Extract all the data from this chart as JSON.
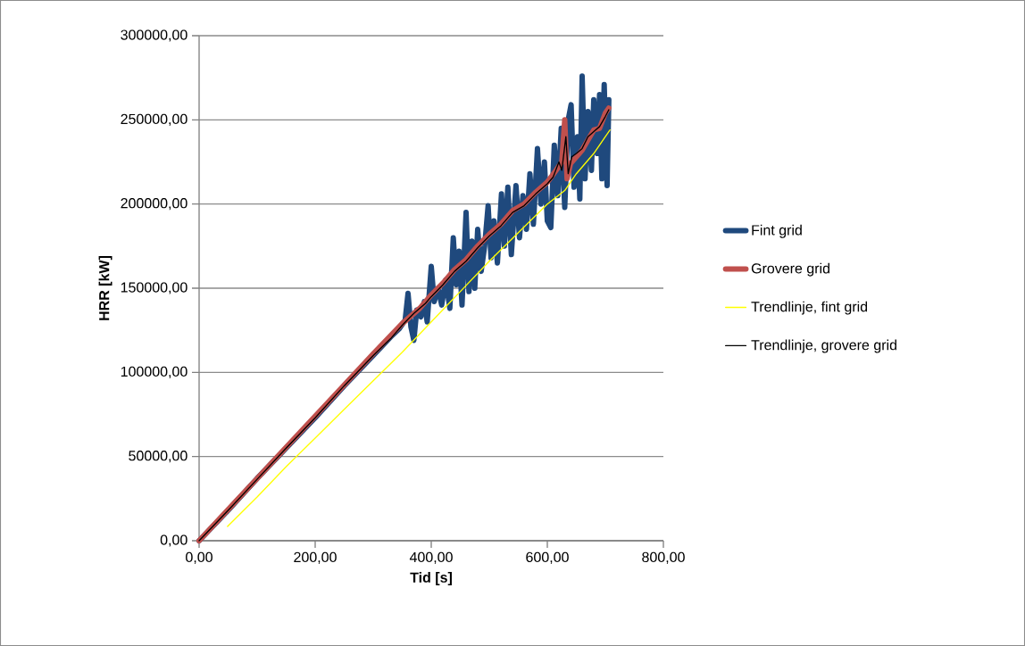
{
  "chart_data": {
    "type": "line",
    "xlabel": "Tid [s]",
    "ylabel": "HRR [kW]",
    "xlim": [
      0,
      800
    ],
    "ylim": [
      0,
      300000
    ],
    "xticks": [
      {
        "value": 0,
        "label": "0,00"
      },
      {
        "value": 200,
        "label": "200,00"
      },
      {
        "value": 400,
        "label": "400,00"
      },
      {
        "value": 600,
        "label": "600,00"
      },
      {
        "value": 800,
        "label": "800,00"
      }
    ],
    "yticks": [
      {
        "value": 0,
        "label": "0,00"
      },
      {
        "value": 50000,
        "label": "50000,00"
      },
      {
        "value": 100000,
        "label": "100000,00"
      },
      {
        "value": 150000,
        "label": "150000,00"
      },
      {
        "value": 200000,
        "label": "200000,00"
      },
      {
        "value": 250000,
        "label": "250000,00"
      },
      {
        "value": 300000,
        "label": "300000,00"
      }
    ],
    "grid": "y",
    "legend": "right",
    "marker": "none",
    "line_style": "solid",
    "series": [
      {
        "name": "Fint grid",
        "color": "#1f497d",
        "x": [
          0,
          50,
          100,
          150,
          200,
          250,
          300,
          330,
          345,
          355,
          360,
          365,
          370,
          375,
          382,
          388,
          393,
          400,
          405,
          412,
          418,
          425,
          432,
          438,
          443,
          448,
          453,
          460,
          465,
          470,
          475,
          480,
          486,
          492,
          498,
          503,
          508,
          514,
          521,
          526,
          532,
          538,
          546,
          552,
          558,
          564,
          570,
          576,
          583,
          589,
          595,
          600,
          606,
          612,
          618,
          624,
          630,
          636,
          641,
          646,
          652,
          656,
          660,
          665,
          670,
          676,
          680,
          686,
          690,
          694,
          698,
          703,
          706
        ],
        "values": [
          0,
          18000,
          37000,
          55000,
          73000,
          92000,
          110000,
          121000,
          126000,
          131000,
          147000,
          127000,
          119000,
          137000,
          133000,
          142000,
          130000,
          163000,
          142000,
          150000,
          140000,
          155000,
          138000,
          180000,
          152000,
          172000,
          140000,
          195000,
          148000,
          178000,
          150000,
          185000,
          160000,
          175000,
          199000,
          168000,
          190000,
          165000,
          206000,
          175000,
          210000,
          170000,
          211000,
          180000,
          205000,
          185000,
          218000,
          188000,
          233000,
          200000,
          225000,
          190000,
          186000,
          235000,
          205000,
          245000,
          198000,
          250000,
          259000,
          210000,
          240000,
          203000,
          276000,
          215000,
          255000,
          220000,
          262000,
          230000,
          265000,
          215000,
          271000,
          211000,
          262000
        ]
      },
      {
        "name": "Grovere grid",
        "color": "#c0504d",
        "x": [
          0,
          50,
          100,
          150,
          200,
          250,
          300,
          350,
          380,
          400,
          420,
          440,
          460,
          480,
          500,
          520,
          540,
          560,
          580,
          600,
          615,
          625,
          630,
          634,
          640,
          650,
          660,
          670,
          680,
          690,
          700,
          706
        ],
        "values": [
          0,
          18500,
          37000,
          55500,
          74000,
          92500,
          111000,
          129000,
          138000,
          146000,
          153000,
          161000,
          167000,
          175000,
          182000,
          188000,
          196000,
          200000,
          207000,
          213000,
          220000,
          225000,
          250000,
          215000,
          224000,
          228000,
          232000,
          238000,
          244000,
          245000,
          254000,
          257000
        ]
      },
      {
        "name": "Trendlinje, fint grid",
        "color": "#ffff00",
        "x": [
          49,
          100,
          150,
          200,
          250,
          300,
          350,
          400,
          450,
          500,
          550,
          600,
          630,
          650,
          680,
          700,
          708
        ],
        "values": [
          8500,
          26000,
          44000,
          61000,
          78000,
          95000,
          112000,
          130000,
          148000,
          166000,
          183000,
          200000,
          208000,
          218000,
          230000,
          240000,
          244000
        ]
      },
      {
        "name": "Trendlinje, grovere grid",
        "color": "#000000",
        "x": [
          0,
          50,
          100,
          150,
          200,
          250,
          300,
          330,
          350,
          370,
          390,
          400,
          420,
          440,
          460,
          480,
          500,
          520,
          540,
          560,
          580,
          600,
          610,
          620,
          625,
          632,
          636,
          642,
          650,
          660,
          670,
          680,
          690,
          700,
          706
        ],
        "values": [
          0,
          18000,
          36500,
          55000,
          73000,
          92000,
          110000,
          120000,
          128000,
          135000,
          141000,
          145000,
          152000,
          160000,
          166000,
          174000,
          181000,
          187000,
          195000,
          199000,
          206000,
          212000,
          216000,
          225000,
          220000,
          240000,
          218000,
          228000,
          230000,
          233000,
          240000,
          243000,
          246000,
          252000,
          256000
        ]
      }
    ]
  }
}
